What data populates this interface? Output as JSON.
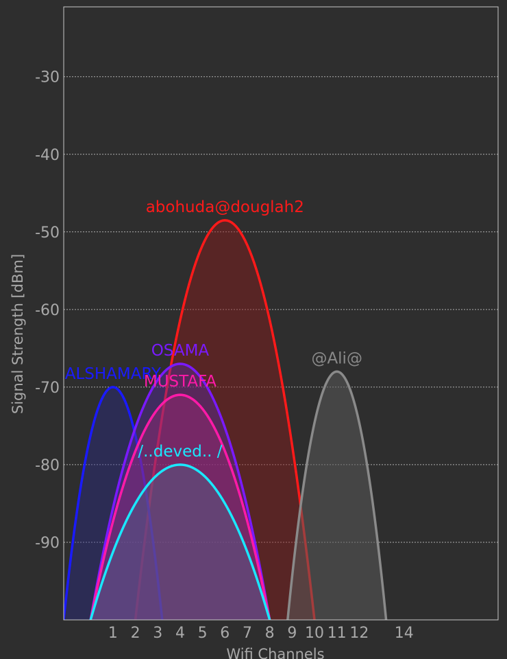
{
  "chart_data": {
    "type": "area",
    "title": "",
    "xlabel": "Wifi Channels",
    "ylabel": "Signal Strength [dBm]",
    "xlim": [
      -1.2,
      18.2
    ],
    "ylim": [
      -100,
      -21
    ],
    "grid": true,
    "x_ticks": [
      1,
      2,
      3,
      4,
      5,
      6,
      7,
      8,
      9,
      10,
      11,
      12,
      14
    ],
    "y_ticks": [
      -30,
      -40,
      -50,
      -60,
      -70,
      -80,
      -90
    ],
    "series": [
      {
        "name": "abohuda@douglah2",
        "channel": 6,
        "peak_dbm": -48.5,
        "half_width": 4,
        "color": "#ff1a1a",
        "fill": "#8b1a1a",
        "fill_opacity": 0.45
      },
      {
        "name": "ALSHAMARY",
        "channel": 1,
        "peak_dbm": -70,
        "half_width": 2.2,
        "color": "#1a1aff",
        "fill": "#2a2a8a",
        "fill_opacity": 0.42
      },
      {
        "name": "OSAMA",
        "channel": 4,
        "peak_dbm": -67,
        "half_width": 4,
        "color": "#7a1aff",
        "fill": "#5a2aa8",
        "fill_opacity": 0.42
      },
      {
        "name": "MUSTAFA",
        "channel": 4,
        "peak_dbm": -71,
        "half_width": 4,
        "color": "#ff1aa8",
        "fill": "#a02a78",
        "fill_opacity": 0.42
      },
      {
        "name": "/..deved.. /",
        "channel": 4,
        "peak_dbm": -80,
        "half_width": 4,
        "color": "#1ae8ff",
        "fill": "#4a6a8a",
        "fill_opacity": 0.4
      },
      {
        "name": "@Ali@",
        "channel": 11,
        "peak_dbm": -68,
        "half_width": 2.2,
        "color": "#8a8a8a",
        "fill": "#5a5a5a",
        "fill_opacity": 0.55
      }
    ],
    "colors": {
      "background": "#2e2e2e",
      "plot_border": "#c8c8c8",
      "grid": "#b0b0b0",
      "text": "#a9a9a9"
    }
  }
}
